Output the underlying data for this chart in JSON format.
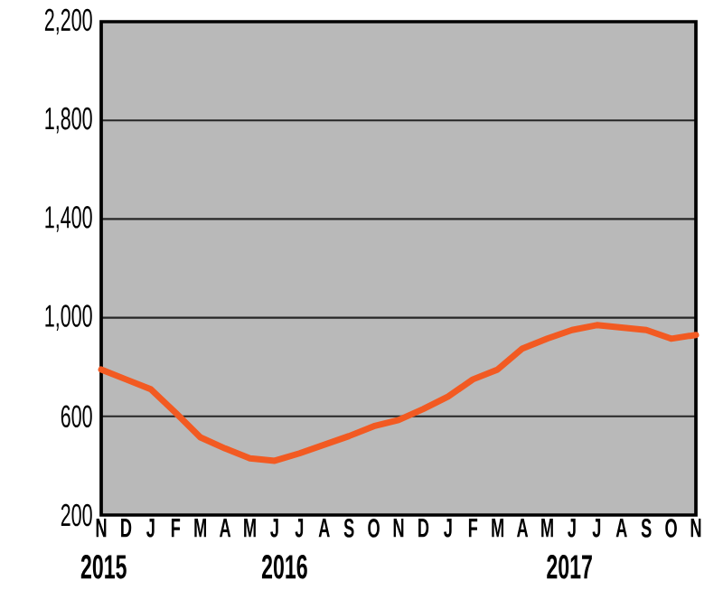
{
  "chart_data": {
    "type": "line",
    "categories": [
      "N",
      "D",
      "J",
      "F",
      "M",
      "A",
      "M",
      "J",
      "J",
      "A",
      "S",
      "O",
      "N",
      "D",
      "J",
      "F",
      "M",
      "A",
      "M",
      "J",
      "J",
      "A",
      "S",
      "O",
      "N"
    ],
    "series": [
      {
        "color": "#f25a22",
        "values": [
          790,
          750,
          710,
          615,
          515,
          470,
          430,
          420,
          450,
          485,
          520,
          560,
          585,
          630,
          680,
          750,
          790,
          875,
          915,
          950,
          970,
          960,
          950,
          915,
          930
        ]
      }
    ],
    "ylim": [
      200,
      2200
    ],
    "yticks": [
      {
        "value": 200,
        "label": "200"
      },
      {
        "value": 600,
        "label": "600"
      },
      {
        "value": 1000,
        "label": "1,000"
      },
      {
        "value": 1400,
        "label": "1,400"
      },
      {
        "value": 1800,
        "label": "1,800"
      },
      {
        "value": 2200,
        "label": "2,200"
      }
    ],
    "grid": "y",
    "marker": "none",
    "line_style": "solid",
    "annotations": [
      "2015",
      "2016",
      "2017"
    ]
  }
}
